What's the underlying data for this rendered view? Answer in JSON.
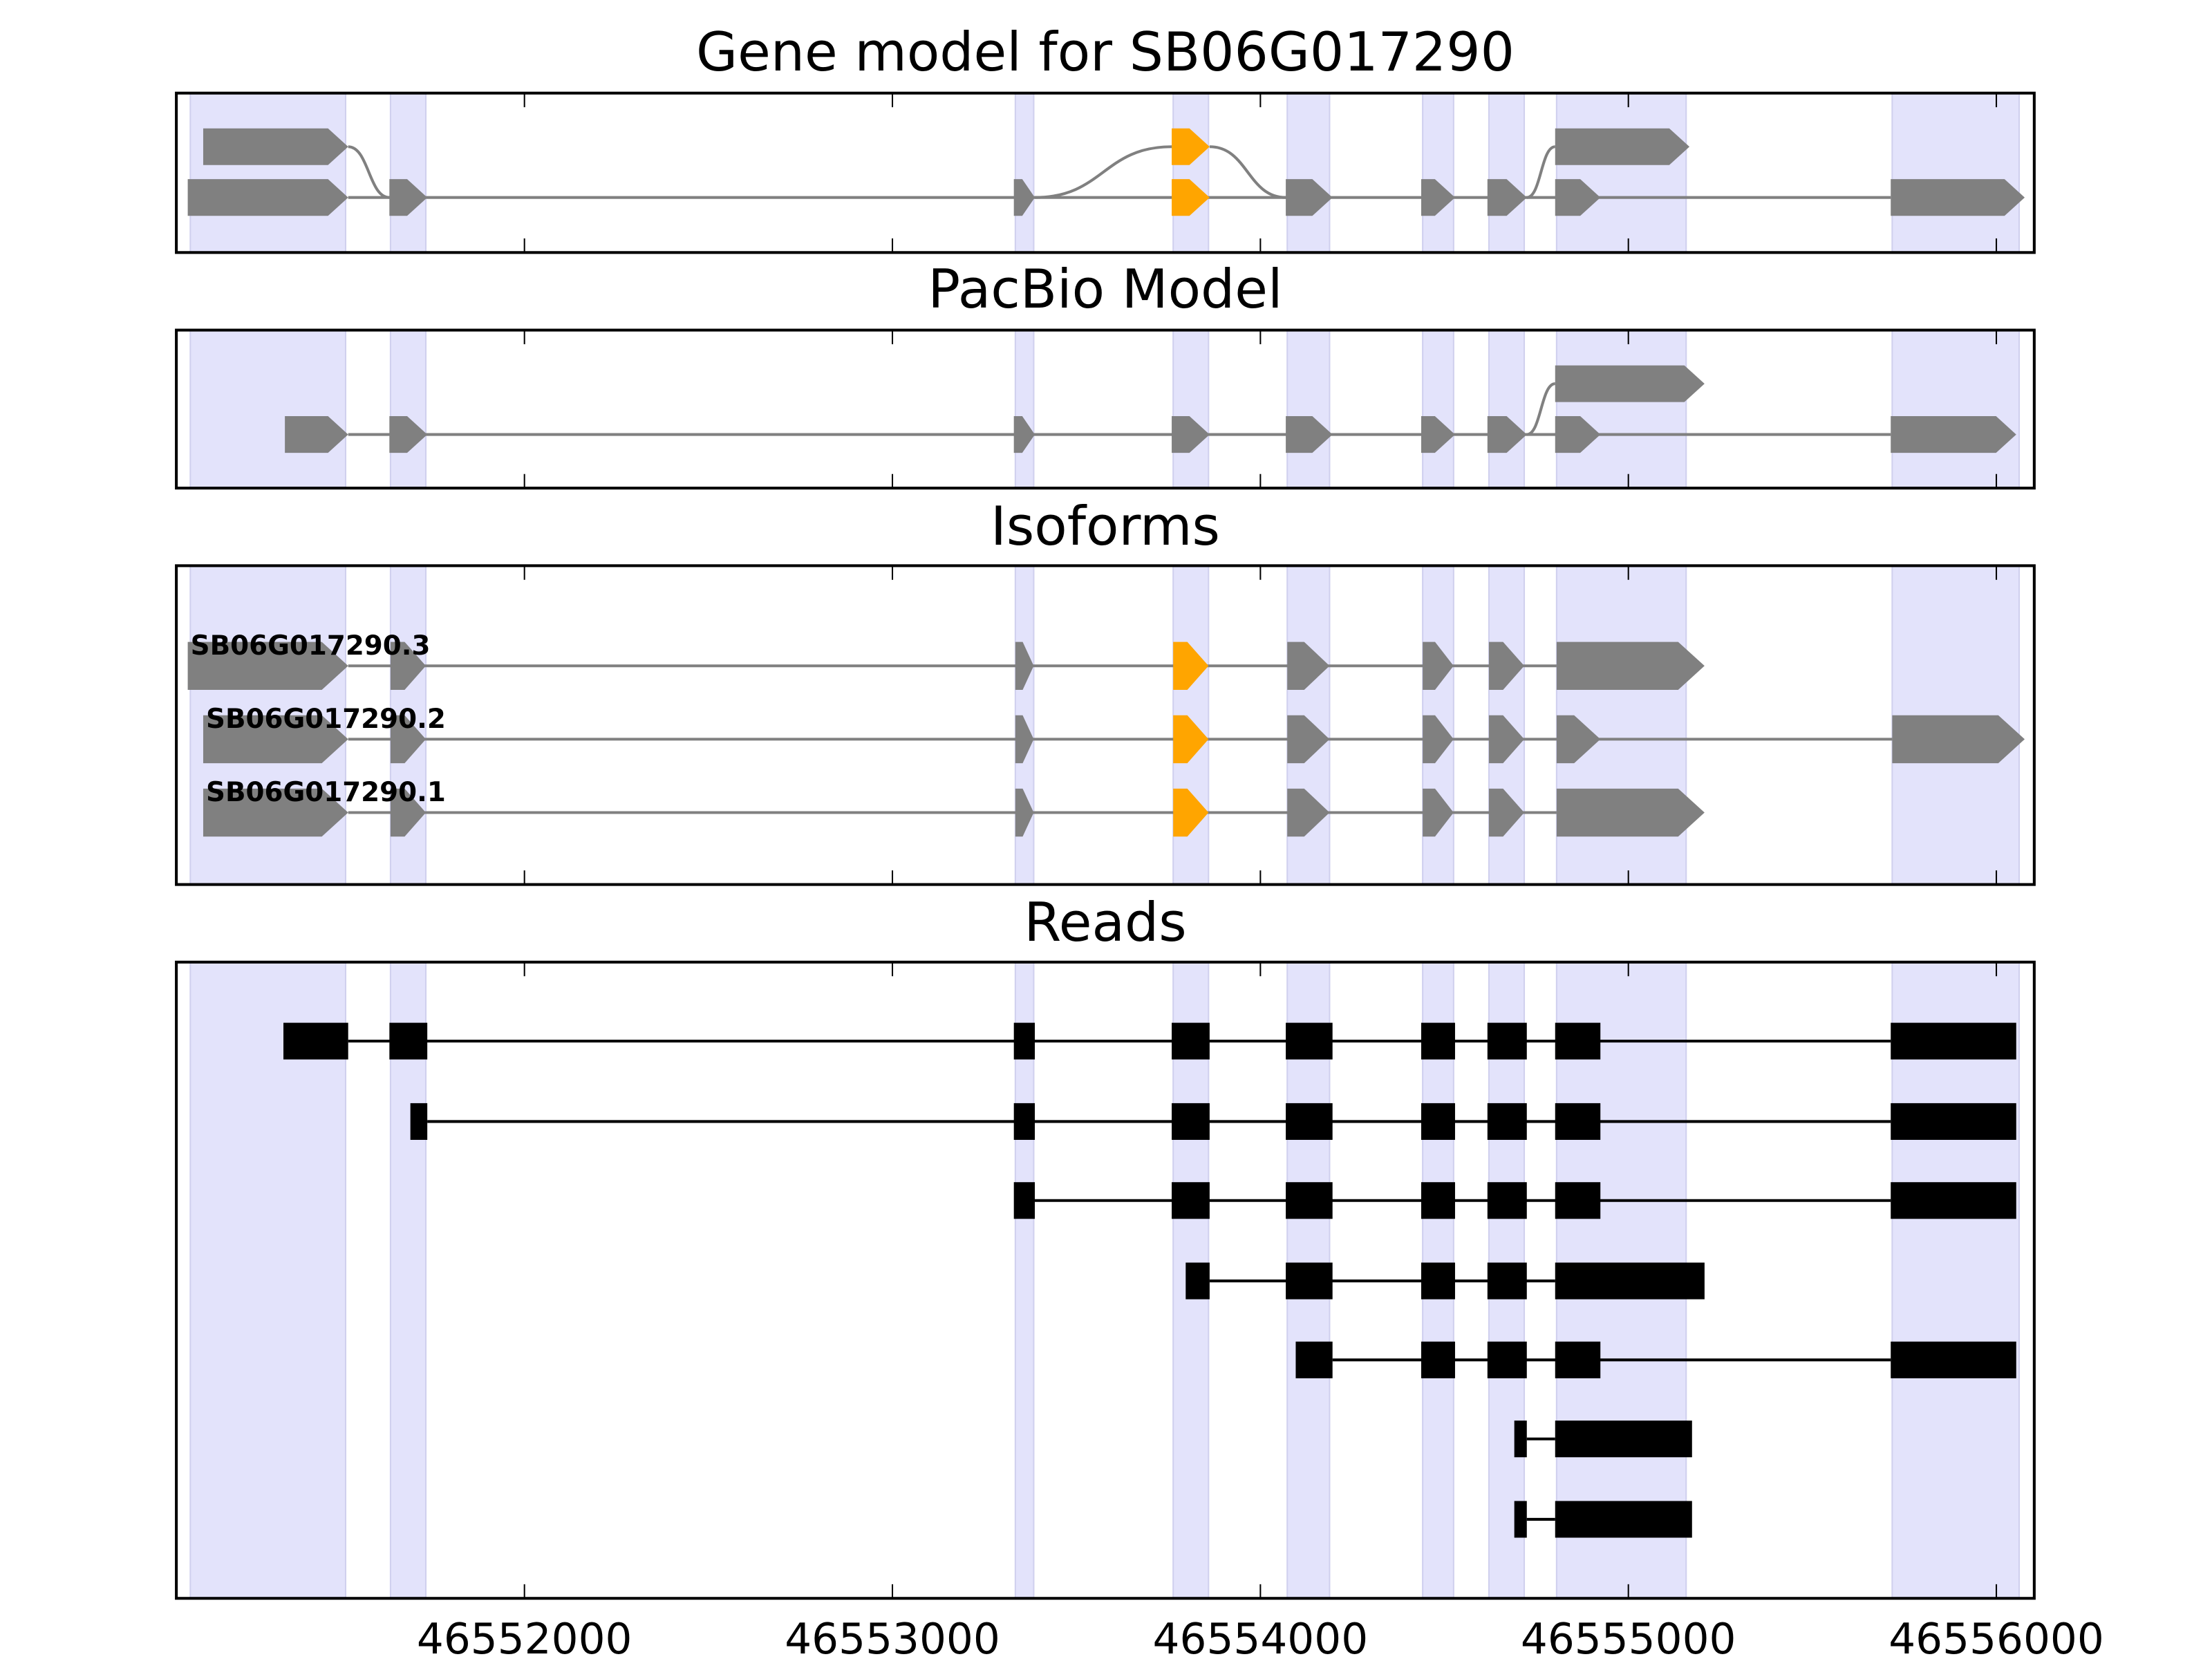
{
  "chart_data": {
    "type": "gene-structure",
    "xlim": [
      46551054,
      46556103
    ],
    "x_ticks": [
      46552000,
      46553000,
      46554000,
      46555000,
      46556000
    ],
    "x_tick_labels": [
      "46552000",
      "46553000",
      "46554000",
      "46555000",
      "46556000"
    ],
    "colors": {
      "exon": "#808080",
      "highlight": "#FFA500",
      "read": "#000000",
      "shade": "#E3E3FB",
      "line": "#808080"
    },
    "shaded_regions": [
      [
        46551092,
        46551514
      ],
      [
        46551636,
        46551732
      ],
      [
        46553334,
        46553384
      ],
      [
        46553763,
        46553859
      ],
      [
        46554073,
        46554188
      ],
      [
        46554441,
        46554525
      ],
      [
        46554621,
        46554717
      ],
      [
        46554805,
        46555157
      ],
      [
        46555717,
        46556062
      ]
    ],
    "panels": [
      {
        "title": "Gene model for SB06G017290",
        "kind": "graph",
        "rows": [
          [
            [
              46551127,
              46551521,
              "exon"
            ],
            [
              46553759,
              46553862,
              "highlight"
            ],
            [
              46554801,
              46555166,
              "exon"
            ]
          ],
          [
            [
              46551085,
              46551521,
              "exon"
            ],
            [
              46551633,
              46551736,
              "exon"
            ],
            [
              46553330,
              46553387,
              "exon"
            ],
            [
              46553759,
              46553862,
              "highlight"
            ],
            [
              46554069,
              46554196,
              "exon"
            ],
            [
              46554437,
              46554529,
              "exon"
            ],
            [
              46554617,
              46554724,
              "exon"
            ],
            [
              46554801,
              46554924,
              "exon"
            ],
            [
              46555713,
              46556077,
              "exon"
            ]
          ]
        ],
        "edges": [
          [
            0,
            0,
            1,
            1
          ],
          [
            1,
            2,
            0,
            1
          ],
          [
            0,
            1,
            1,
            4
          ],
          [
            1,
            6,
            0,
            2
          ]
        ]
      },
      {
        "title": "PacBio Model",
        "kind": "graph",
        "rows": [
          [
            [
              46554801,
              46555207,
              "exon"
            ]
          ],
          [
            [
              46551349,
              46551521,
              "exon"
            ],
            [
              46551633,
              46551736,
              "exon"
            ],
            [
              46553330,
              46553387,
              "exon"
            ],
            [
              46553759,
              46553862,
              "exon"
            ],
            [
              46554069,
              46554196,
              "exon"
            ],
            [
              46554437,
              46554529,
              "exon"
            ],
            [
              46554617,
              46554724,
              "exon"
            ],
            [
              46554801,
              46554924,
              "exon"
            ],
            [
              46555713,
              46556054,
              "exon"
            ]
          ]
        ],
        "edges": [
          [
            1,
            6,
            0,
            0
          ]
        ]
      },
      {
        "title": "Isoforms",
        "kind": "isoforms",
        "rows": [
          {
            "name": "SB06G017290.3",
            "exons": [
              [
                46551085,
                46551521,
                "exon"
              ],
              [
                46551636,
                46551732,
                "exon"
              ],
              [
                46553334,
                46553384,
                "exon"
              ],
              [
                46553763,
                46553859,
                "highlight"
              ],
              [
                46554073,
                46554188,
                "exon"
              ],
              [
                46554441,
                46554525,
                "exon"
              ],
              [
                46554621,
                46554717,
                "exon"
              ],
              [
                46554805,
                46555207,
                "exon"
              ]
            ]
          },
          {
            "name": "SB06G017290.2",
            "exons": [
              [
                46551127,
                46551521,
                "exon"
              ],
              [
                46551636,
                46551732,
                "exon"
              ],
              [
                46553334,
                46553384,
                "exon"
              ],
              [
                46553763,
                46553859,
                "highlight"
              ],
              [
                46554073,
                46554188,
                "exon"
              ],
              [
                46554441,
                46554525,
                "exon"
              ],
              [
                46554621,
                46554717,
                "exon"
              ],
              [
                46554805,
                46554924,
                "exon"
              ],
              [
                46555717,
                46556077,
                "exon"
              ]
            ]
          },
          {
            "name": "SB06G017290.1",
            "exons": [
              [
                46551127,
                46551521,
                "exon"
              ],
              [
                46551636,
                46551732,
                "exon"
              ],
              [
                46553334,
                46553384,
                "exon"
              ],
              [
                46553763,
                46553859,
                "highlight"
              ],
              [
                46554073,
                46554188,
                "exon"
              ],
              [
                46554441,
                46554525,
                "exon"
              ],
              [
                46554621,
                46554717,
                "exon"
              ],
              [
                46554805,
                46555207,
                "exon"
              ]
            ]
          }
        ]
      },
      {
        "title": "Reads",
        "kind": "reads",
        "rows": [
          [
            [
              46551345,
              46551521
            ],
            [
              46551633,
              46551736
            ],
            [
              46553330,
              46553387
            ],
            [
              46553759,
              46553862
            ],
            [
              46554069,
              46554196
            ],
            [
              46554437,
              46554529
            ],
            [
              46554617,
              46554724
            ],
            [
              46554801,
              46554924
            ],
            [
              46555713,
              46556054
            ]
          ],
          [
            [
              46551690,
              46551736
            ],
            [
              46553330,
              46553387
            ],
            [
              46553759,
              46553862
            ],
            [
              46554069,
              46554196
            ],
            [
              46554437,
              46554529
            ],
            [
              46554617,
              46554724
            ],
            [
              46554801,
              46554924
            ],
            [
              46555713,
              46556054
            ]
          ],
          [
            [
              46553330,
              46553387
            ],
            [
              46553759,
              46553862
            ],
            [
              46554069,
              46554196
            ],
            [
              46554437,
              46554529
            ],
            [
              46554617,
              46554724
            ],
            [
              46554801,
              46554924
            ],
            [
              46555713,
              46556054
            ]
          ],
          [
            [
              46553797,
              46553862
            ],
            [
              46554069,
              46554196
            ],
            [
              46554437,
              46554529
            ],
            [
              46554617,
              46554724
            ],
            [
              46554801,
              46555207
            ]
          ],
          [
            [
              46554096,
              46554196
            ],
            [
              46554437,
              46554529
            ],
            [
              46554617,
              46554724
            ],
            [
              46554801,
              46554924
            ],
            [
              46555713,
              46556054
            ]
          ],
          [
            [
              46554690,
              46554724
            ],
            [
              46554801,
              46555173
            ]
          ],
          [
            [
              46554690,
              46554724
            ],
            [
              46554801,
              46555173
            ]
          ]
        ]
      }
    ]
  }
}
